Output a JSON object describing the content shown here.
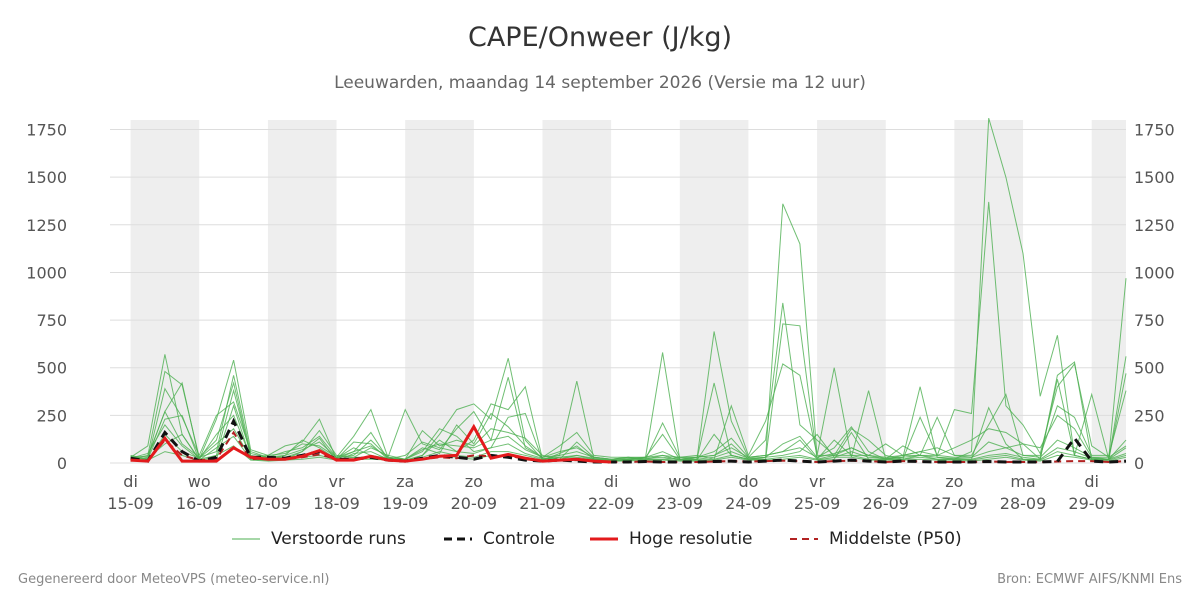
{
  "title": "CAPE/Onweer (J/kg)",
  "subtitle": "Leeuwarden, maandag 14 september 2026 (Versie ma 12 uur)",
  "footer": {
    "left": "Gegenereerd door MeteoVPS (meteo-service.nl)",
    "right": "Bron: ECMWF AIFS/KNMI Ens"
  },
  "legend": {
    "ensemble": "Verstoorde runs",
    "control": "Controle",
    "hires": "Hoge resolutie",
    "median": "Middelste (P50)"
  },
  "colors": {
    "ensemble": "#4caf50",
    "control": "#111111",
    "hires": "#e31a1c",
    "median": "#b22222",
    "weekend_band": "#eeeeee",
    "grid": "#dddddd"
  },
  "chart_data": {
    "type": "line",
    "title": "CAPE/Onweer (J/kg)",
    "x_unit": "day offset from 15-09 00:00, 12-hour steps",
    "ylim": [
      0,
      1800
    ],
    "yticks": [
      0,
      250,
      500,
      750,
      1000,
      1250,
      1500,
      1750
    ],
    "grid": true,
    "legend_position": "bottom",
    "x_tick_labels": [
      {
        "day": 0,
        "weekday": "di",
        "date": "15-09"
      },
      {
        "day": 1,
        "weekday": "wo",
        "date": "16-09"
      },
      {
        "day": 2,
        "weekday": "do",
        "date": "17-09"
      },
      {
        "day": 3,
        "weekday": "vr",
        "date": "18-09"
      },
      {
        "day": 4,
        "weekday": "za",
        "date": "19-09"
      },
      {
        "day": 5,
        "weekday": "zo",
        "date": "20-09"
      },
      {
        "day": 6,
        "weekday": "ma",
        "date": "21-09"
      },
      {
        "day": 7,
        "weekday": "di",
        "date": "22-09"
      },
      {
        "day": 8,
        "weekday": "wo",
        "date": "23-09"
      },
      {
        "day": 9,
        "weekday": "do",
        "date": "24-09"
      },
      {
        "day": 10,
        "weekday": "vr",
        "date": "25-09"
      },
      {
        "day": 11,
        "weekday": "za",
        "date": "26-09"
      },
      {
        "day": 12,
        "weekday": "zo",
        "date": "27-09"
      },
      {
        "day": 13,
        "weekday": "ma",
        "date": "28-09"
      },
      {
        "day": 14,
        "weekday": "di",
        "date": "29-09"
      }
    ],
    "x_range": [
      -0.3,
      14.5
    ],
    "shaded_intervals": [
      [
        0,
        1
      ],
      [
        2,
        3
      ],
      [
        4,
        5
      ],
      [
        6,
        7
      ],
      [
        8,
        9
      ],
      [
        10,
        11
      ],
      [
        12,
        13
      ],
      [
        14,
        14.5
      ]
    ],
    "x": [
      0.0,
      0.25,
      0.5,
      0.75,
      1.0,
      1.25,
      1.5,
      1.75,
      2.0,
      2.25,
      2.5,
      2.75,
      3.0,
      3.25,
      3.5,
      3.75,
      4.0,
      4.25,
      4.5,
      4.75,
      5.0,
      5.25,
      5.5,
      5.75,
      6.0,
      6.25,
      6.5,
      6.75,
      7.0,
      7.25,
      7.5,
      7.75,
      8.0,
      8.25,
      8.5,
      8.75,
      9.0,
      9.25,
      9.5,
      9.75,
      10.0,
      10.25,
      10.5,
      10.75,
      11.0,
      11.25,
      11.5,
      11.75,
      12.0,
      12.25,
      12.5,
      12.75,
      13.0,
      13.25,
      13.5,
      13.75,
      14.0,
      14.25,
      14.5
    ],
    "control": [
      25,
      10,
      160,
      60,
      10,
      30,
      220,
      30,
      30,
      25,
      40,
      60,
      20,
      20,
      30,
      15,
      10,
      25,
      40,
      30,
      20,
      40,
      30,
      15,
      10,
      15,
      10,
      5,
      5,
      5,
      8,
      5,
      5,
      5,
      8,
      10,
      5,
      10,
      15,
      10,
      5,
      10,
      15,
      10,
      5,
      10,
      8,
      5,
      5,
      5,
      8,
      5,
      5,
      5,
      8,
      130,
      10,
      5,
      10
    ],
    "hires": [
      15,
      10,
      130,
      10,
      10,
      10,
      80,
      30,
      20,
      20,
      35,
      65,
      15,
      15,
      35,
      15,
      10,
      20,
      35,
      40,
      190,
      25,
      45,
      25,
      10,
      15,
      20,
      10,
      5
    ],
    "median": [
      20,
      10,
      120,
      40,
      15,
      20,
      160,
      20,
      25,
      20,
      30,
      45,
      20,
      20,
      30,
      15,
      10,
      20,
      30,
      25,
      40,
      35,
      40,
      20,
      10,
      15,
      15,
      10,
      5,
      5,
      8,
      5,
      5,
      5,
      8,
      10,
      8,
      10,
      12,
      10,
      5,
      10,
      12,
      10,
      5,
      10,
      8,
      5,
      5,
      5,
      8,
      5,
      5,
      5,
      8,
      10,
      10,
      5,
      10
    ],
    "ensemble_series": [
      [
        30,
        90,
        570,
        150,
        20,
        230,
        540,
        70,
        40,
        90,
        110,
        230,
        20,
        60,
        160,
        20,
        10,
        40,
        150,
        280,
        310,
        230,
        550,
        120,
        20,
        40,
        430,
        20,
        10,
        20,
        30,
        580,
        20,
        30,
        40,
        100,
        20,
        30,
        1360,
        1150,
        40,
        500,
        30,
        380,
        20,
        30,
        400,
        30,
        20,
        60,
        1810,
        1500,
        1100,
        350,
        670,
        40,
        360,
        20,
        560
      ],
      [
        20,
        40,
        480,
        410,
        30,
        60,
        460,
        50,
        30,
        60,
        80,
        140,
        30,
        140,
        280,
        30,
        280,
        100,
        70,
        180,
        270,
        120,
        450,
        80,
        30,
        90,
        160,
        40,
        30,
        30,
        20,
        210,
        30,
        20,
        690,
        220,
        30,
        120,
        840,
        200,
        120,
        40,
        180,
        120,
        40,
        20,
        240,
        40,
        280,
        260,
        1370,
        300,
        200,
        50,
        400,
        520,
        90,
        30,
        970
      ],
      [
        15,
        30,
        270,
        420,
        20,
        40,
        380,
        40,
        20,
        40,
        120,
        80,
        20,
        110,
        100,
        20,
        40,
        110,
        80,
        60,
        120,
        310,
        280,
        400,
        20,
        30,
        40,
        20,
        15,
        20,
        30,
        150,
        20,
        20,
        420,
        40,
        20,
        20,
        730,
        720,
        20,
        20,
        160,
        20,
        20,
        20,
        40,
        20,
        20,
        20,
        290,
        100,
        20,
        20,
        460,
        530,
        20,
        20,
        470
      ],
      [
        40,
        20,
        390,
        240,
        40,
        250,
        320,
        60,
        30,
        30,
        60,
        170,
        40,
        30,
        80,
        40,
        20,
        170,
        90,
        120,
        90,
        180,
        160,
        130,
        40,
        20,
        110,
        30,
        20,
        30,
        20,
        20,
        30,
        40,
        20,
        300,
        40,
        220,
        520,
        460,
        40,
        40,
        40,
        40,
        100,
        40,
        40,
        240,
        40,
        40,
        200,
        360,
        40,
        40,
        300,
        240,
        40,
        40,
        380
      ],
      [
        10,
        20,
        230,
        250,
        15,
        20,
        300,
        20,
        15,
        20,
        60,
        130,
        10,
        50,
        60,
        20,
        20,
        60,
        180,
        140,
        60,
        80,
        240,
        260,
        15,
        50,
        90,
        20,
        10,
        15,
        20,
        40,
        15,
        15,
        150,
        40,
        20,
        30,
        100,
        140,
        30,
        80,
        190,
        60,
        20,
        90,
        40,
        40,
        80,
        120,
        180,
        160,
        100,
        20,
        440,
        40,
        20,
        20,
        80
      ],
      [
        25,
        50,
        200,
        90,
        20,
        150,
        250,
        30,
        40,
        50,
        100,
        90,
        30,
        40,
        120,
        30,
        20,
        80,
        50,
        200,
        100,
        260,
        190,
        90,
        30,
        60,
        80,
        30,
        20,
        25,
        30,
        60,
        20,
        30,
        60,
        130,
        30,
        40,
        60,
        120,
        20,
        40,
        80,
        40,
        20,
        40,
        60,
        80,
        40,
        30,
        110,
        80,
        100,
        80,
        250,
        180,
        30,
        20,
        120
      ],
      [
        35,
        15,
        150,
        60,
        25,
        100,
        180,
        25,
        20,
        30,
        40,
        60,
        25,
        80,
        40,
        25,
        15,
        40,
        120,
        60,
        50,
        80,
        100,
        50,
        25,
        20,
        40,
        25,
        15,
        20,
        25,
        30,
        20,
        20,
        30,
        60,
        25,
        30,
        40,
        60,
        150,
        30,
        60,
        30,
        25,
        30,
        40,
        30,
        25,
        20,
        40,
        50,
        30,
        20,
        80,
        60,
        25,
        20,
        50
      ],
      [
        20,
        25,
        100,
        150,
        15,
        80,
        140,
        20,
        15,
        20,
        30,
        40,
        20,
        30,
        30,
        20,
        10,
        30,
        60,
        40,
        30,
        60,
        60,
        40,
        20,
        30,
        30,
        20,
        10,
        15,
        20,
        20,
        15,
        15,
        20,
        40,
        20,
        20,
        30,
        40,
        20,
        120,
        40,
        20,
        20,
        20,
        30,
        20,
        20,
        15,
        30,
        40,
        20,
        15,
        60,
        40,
        20,
        15,
        40
      ],
      [
        10,
        15,
        60,
        40,
        10,
        40,
        90,
        15,
        10,
        15,
        20,
        30,
        15,
        20,
        20,
        15,
        10,
        20,
        40,
        30,
        20,
        40,
        40,
        30,
        15,
        20,
        20,
        15,
        10,
        10,
        15,
        15,
        10,
        10,
        15,
        30,
        15,
        15,
        20,
        30,
        15,
        30,
        30,
        15,
        15,
        15,
        20,
        15,
        15,
        10,
        20,
        30,
        15,
        10,
        40,
        30,
        15,
        10,
        30
      ],
      [
        30,
        35,
        270,
        100,
        30,
        120,
        420,
        35,
        30,
        40,
        70,
        110,
        30,
        60,
        90,
        30,
        20,
        70,
        100,
        90,
        80,
        120,
        140,
        70,
        30,
        40,
        60,
        30,
        20,
        30,
        30,
        40,
        30,
        30,
        40,
        80,
        30,
        40,
        60,
        80,
        30,
        50,
        80,
        40,
        30,
        40,
        60,
        40,
        30,
        30,
        60,
        80,
        40,
        30,
        120,
        80,
        30,
        30,
        90
      ]
    ]
  }
}
